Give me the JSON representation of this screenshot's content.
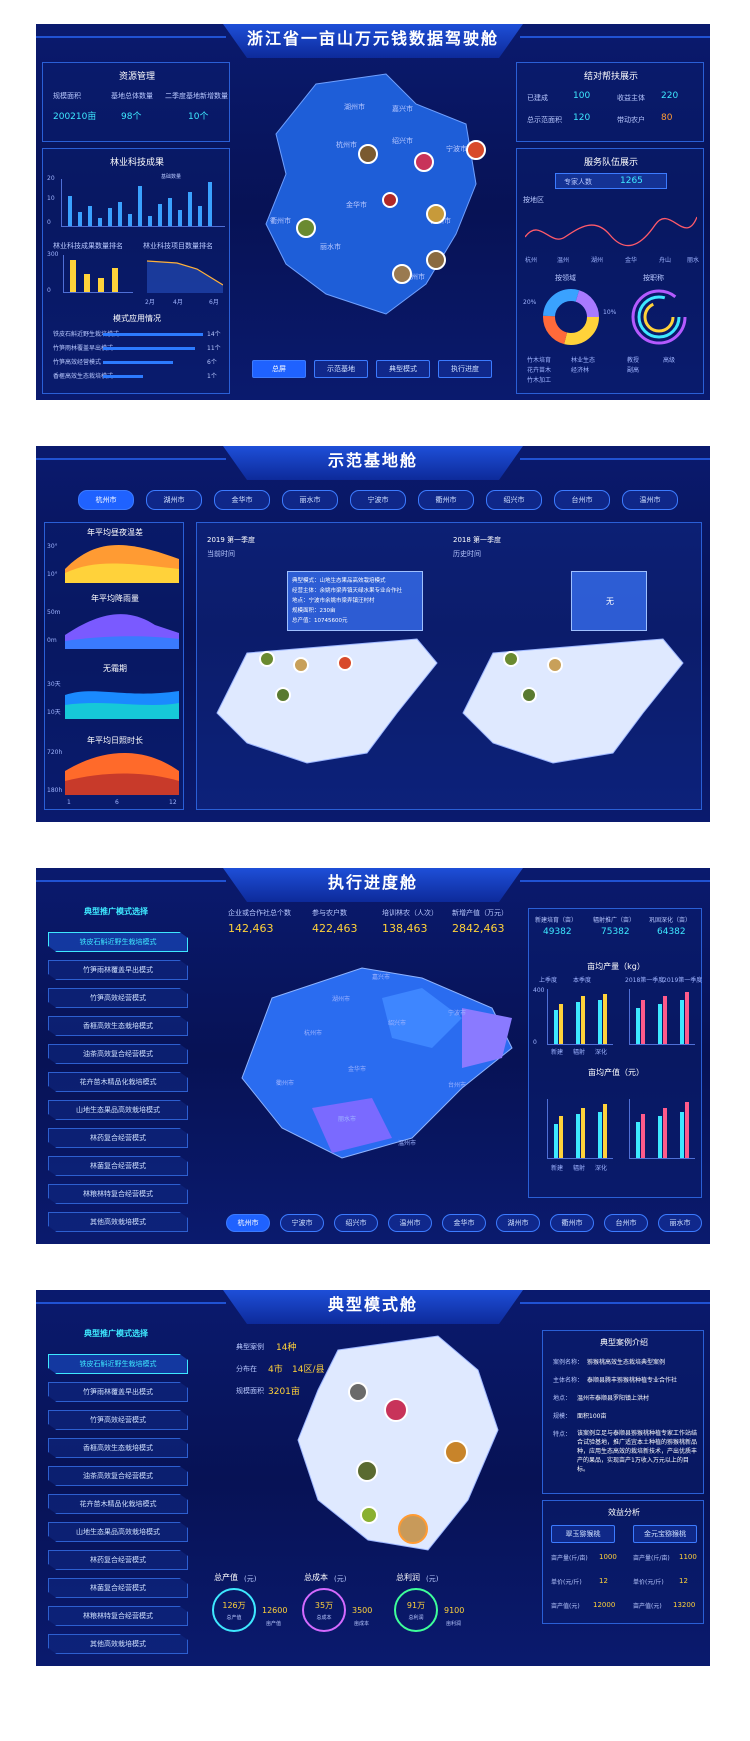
{
  "p1": {
    "title": "浙江省一亩山万元钱数据驾驶舱",
    "res": {
      "title": "资源管理",
      "cols": [
        {
          "label": "规模面积",
          "value": "200210亩"
        },
        {
          "label": "基地总体数量",
          "value": "98个"
        },
        {
          "label": "二季度基地新增数量",
          "value": "10个"
        }
      ]
    },
    "forest": {
      "title": "林业科技成果",
      "legend": "基础数量",
      "sub1": "林业科技成果数量排名",
      "sub2": "林业科技项目数量排名",
      "y": [
        "20",
        "15",
        "10",
        "5",
        "0"
      ],
      "x2": [
        "2月",
        "3月",
        "4月",
        "5月",
        "6月"
      ],
      "y2": [
        "300",
        "200",
        "100",
        "0"
      ],
      "y3": [
        "90",
        "60",
        "30",
        "0"
      ]
    },
    "usage": {
      "title": "模式应用情况",
      "items": [
        {
          "name": "铁皮石斛近野生栽培模式",
          "v": "14个"
        },
        {
          "name": "竹笋雨林覆盖早出模式",
          "v": "11个"
        },
        {
          "name": "竹笋高效经营模式",
          "v": "6个"
        },
        {
          "name": "香榧高效生态栽培模式",
          "v": "1个"
        }
      ]
    },
    "help": {
      "title": "结对帮扶展示",
      "a": {
        "label": "已建成",
        "value": "100"
      },
      "b": {
        "label": "收益主体",
        "value": "220"
      },
      "c": {
        "label": "总示范面积",
        "value": "120"
      },
      "d": {
        "label": "带动农户",
        "value": "80"
      }
    },
    "team": {
      "title": "服务队伍展示",
      "expert": "专家人数",
      "count": "1265",
      "region": "按地区",
      "area": "按领域",
      "title2": "按职称",
      "regions": [
        "杭州",
        "宁波",
        "温州",
        "嘉兴",
        "湖州",
        "绍兴",
        "金华",
        "衢州",
        "舟山",
        "台州",
        "丽水"
      ],
      "leg1": [
        "竹木培育",
        "林业生态",
        "花卉苗木",
        "经济林",
        "竹木加工"
      ],
      "leg2": [
        "教授",
        "高级",
        "副高",
        "其他"
      ],
      "pcts": [
        "20%",
        "10%",
        "20%",
        "20%"
      ]
    },
    "cities": [
      "湖州市",
      "嘉兴市",
      "杭州市",
      "绍兴市",
      "宁波市",
      "金华市",
      "衢州市",
      "台州市",
      "丽水市",
      "温州市"
    ],
    "nav": [
      "总屏",
      "示范基地",
      "典型模式",
      "执行进度"
    ]
  },
  "p2": {
    "title": "示范基地舱",
    "tabs": [
      "杭州市",
      "湖州市",
      "金华市",
      "丽水市",
      "宁波市",
      "衢州市",
      "绍兴市",
      "台州市",
      "温州市"
    ],
    "charts": [
      {
        "title": "年平均昼夜温差",
        "y": [
          "30°",
          "20°",
          "10°"
        ]
      },
      {
        "title": "年平均降雨量",
        "y": [
          "50m",
          "30m",
          "0m"
        ]
      },
      {
        "title": "无霜期",
        "y": [
          "30天",
          "20天",
          "10天"
        ]
      },
      {
        "title": "年平均日照时长",
        "y": [
          "720h",
          "360h",
          "180h"
        ]
      }
    ],
    "x": [
      "1",
      "2",
      "3",
      "4",
      "5",
      "6",
      "7",
      "8",
      "9",
      "10",
      "11",
      "12"
    ],
    "left": {
      "period": "2019 第一季度",
      "sub": "当前时间",
      "pop": [
        "典型模式：山地生态果品高效栽培模式",
        "经营主体：余姚市梁弄镇天绿水果专业合作社",
        "地点：宁波市余姚市梁弄镇汪村村",
        "规模面积：230亩",
        "总产值：10745600元"
      ]
    },
    "right": {
      "period": "2018 第一季度",
      "sub": "历史时间",
      "pop": "无"
    }
  },
  "p3": {
    "title": "执行进度舱",
    "side": "典型推广模式选择",
    "modes": [
      "铁皮石斛近野生栽培模式",
      "竹笋雨林覆盖早出模式",
      "竹笋高效经营模式",
      "香榧高效生态栽培模式",
      "油茶高效复合经营模式",
      "花卉苗木精品化栽培模式",
      "山地生态果品高效栽培模式",
      "林药复合经营模式",
      "林菌复合经营模式",
      "林粮林特复合经营模式",
      "其他高效栽培模式"
    ],
    "stats": [
      {
        "label": "企业或合作社总个数",
        "value": "142,463"
      },
      {
        "label": "参与农户数",
        "value": "422,463"
      },
      {
        "label": "培训林农（人次）",
        "value": "138,463"
      },
      {
        "label": "新增产值（万元）",
        "value": "2842,463"
      }
    ],
    "right": [
      {
        "label": "新建培育（亩）",
        "value": "49382"
      },
      {
        "label": "辐射推广（亩）",
        "value": "75382"
      },
      {
        "label": "巩固深化（亩）",
        "value": "64382"
      }
    ],
    "c1": "亩均产量（kg）",
    "c2": "亩均产值（元）",
    "leg": [
      "上季度",
      "本季度",
      "2018第一季度",
      "2019第一季度"
    ],
    "cx": [
      "新建",
      "辐射",
      "深化"
    ],
    "cy": [
      "400",
      "300",
      "200",
      "100",
      "0"
    ],
    "mapcities": [
      "湖州市",
      "嘉兴市",
      "杭州市",
      "绍兴市",
      "宁波市",
      "衢州市",
      "金华市",
      "台州市",
      "丽水市",
      "温州市"
    ],
    "tabs": [
      "杭州市",
      "宁波市",
      "绍兴市",
      "温州市",
      "金华市",
      "湖州市",
      "衢州市",
      "台州市",
      "丽水市"
    ]
  },
  "p4": {
    "title": "典型模式舱",
    "side": "典型推广模式选择",
    "modes": [
      "铁皮石斛近野生栽培模式",
      "竹笋雨林覆盖早出模式",
      "竹笋高效经营模式",
      "香榧高效生态栽培模式",
      "油茶高效复合经营模式",
      "花卉苗木精品化栽培模式",
      "山地生态果品高效栽培模式",
      "林药复合经营模式",
      "林菌复合经营模式",
      "林粮林特复合经营模式",
      "其他高效栽培模式"
    ],
    "info": {
      "a": "典型案例",
      "av": "14种",
      "b": "分布在",
      "bv1": "4市",
      "bv2": "14区/县",
      "c": "规模面积",
      "cv": "3201亩"
    },
    "case": {
      "title": "典型案例介绍",
      "rows": [
        {
          "k": "案例名称：",
          "v": "猕猴桃高效生态栽培典型案例"
        },
        {
          "k": "主体名称：",
          "v": "泰顺县腾丰猕猴桃种植专业合作社"
        },
        {
          "k": "地点：",
          "v": "温州市泰顺县罗阳镇上洪村"
        },
        {
          "k": "规模：",
          "v": "面积100亩"
        },
        {
          "k": "特点：",
          "v": "该案例立足与泰顺县猕猴桃种植专家工作站结合试验基地，推广适宜本土种植的猕猴桃新品种，应用生态高效的栽培新技术，产出优质丰产的果品，实现亩产1万收入万元以上的目标。"
        }
      ]
    },
    "eff": {
      "title": "效益分析",
      "a": "翠玉猕猴桃",
      "b": "金元宝猕猴桃",
      "rows": [
        {
          "k": "亩产量(斤/亩)",
          "v1": "1000",
          "v2": "1100"
        },
        {
          "k": "单价(元/斤)",
          "v1": "12",
          "v2": "12"
        },
        {
          "k": "亩产值(元)",
          "v1": "12000",
          "v2": "13200"
        }
      ]
    },
    "tot": [
      {
        "title": "总产值",
        "unit": "(元)",
        "ring": "126万",
        "rl": "总产值",
        "v": "12600",
        "vl": "亩产值"
      },
      {
        "title": "总成本",
        "unit": "(元)",
        "ring": "35万",
        "rl": "总成本",
        "v": "3500",
        "vl": "亩成本"
      },
      {
        "title": "总利润",
        "unit": "(元)",
        "ring": "91万",
        "rl": "总利润",
        "v": "9100",
        "vl": "亩利润"
      }
    ]
  }
}
